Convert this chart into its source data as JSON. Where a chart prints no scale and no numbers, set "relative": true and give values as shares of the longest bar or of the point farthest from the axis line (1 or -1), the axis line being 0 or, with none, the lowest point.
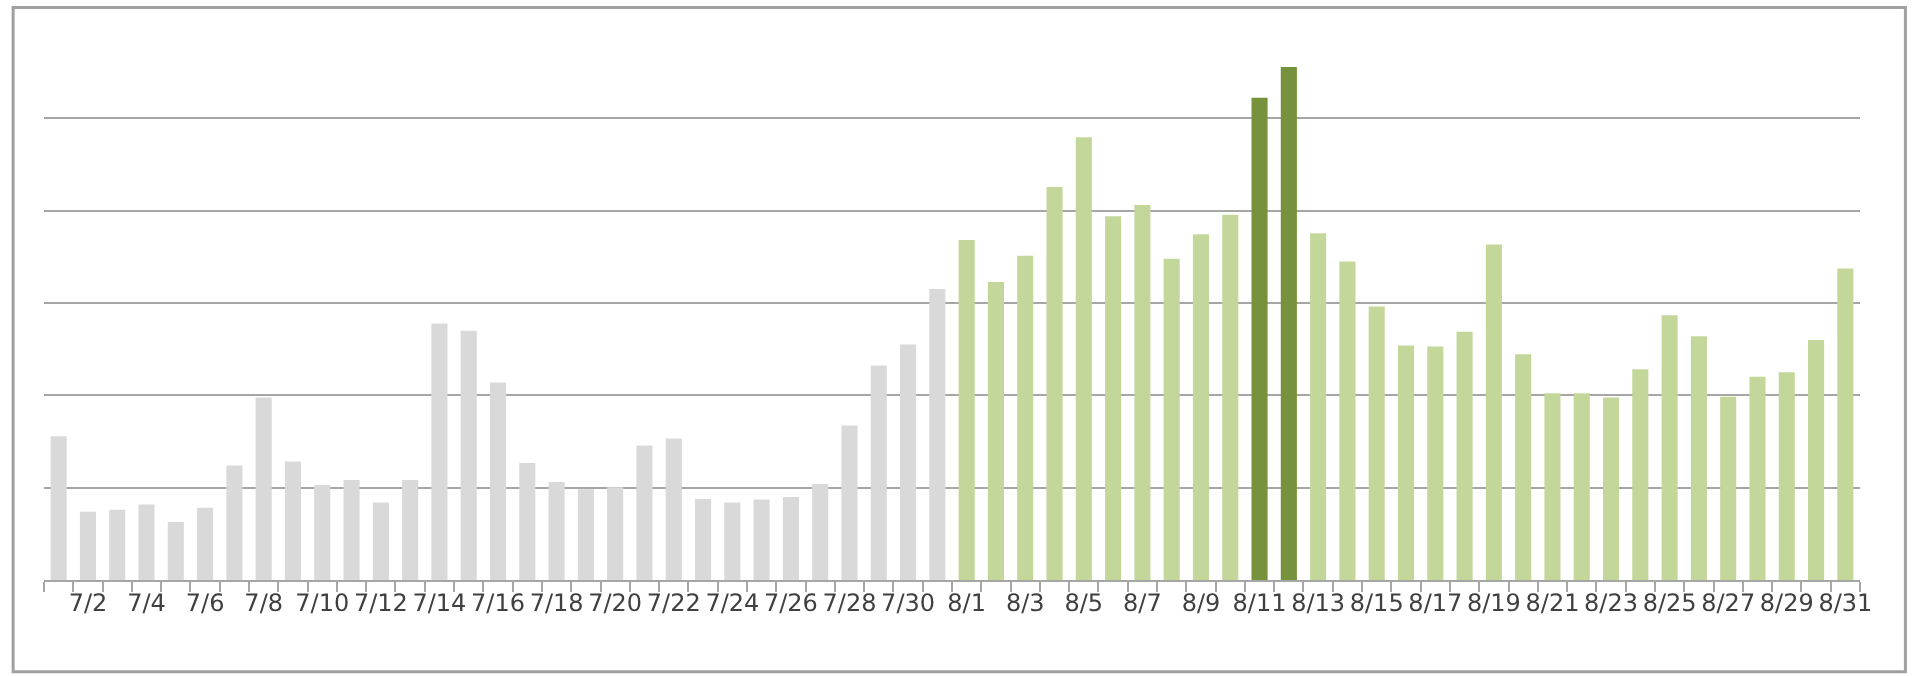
{
  "chart_data": {
    "type": "bar",
    "relative": true,
    "grid": "y",
    "legend": false,
    "categories": [
      null,
      "7/2",
      null,
      "7/4",
      null,
      "7/6",
      null,
      "7/8",
      null,
      "7/10",
      null,
      "7/12",
      null,
      "7/14",
      null,
      "7/16",
      null,
      "7/18",
      null,
      "7/20",
      null,
      "7/22",
      null,
      "7/24",
      null,
      "7/26",
      null,
      "7/28",
      null,
      "7/30",
      null,
      "8/1",
      null,
      "8/3",
      null,
      "8/5",
      null,
      "8/7",
      null,
      "8/9",
      null,
      "8/11",
      null,
      "8/13",
      null,
      "8/15",
      null,
      "8/17",
      null,
      "8/19",
      null,
      "8/21",
      null,
      "8/23",
      null,
      "8/25",
      null,
      "8/27",
      null,
      "8/29",
      null,
      "8/31"
    ],
    "values": [
      0.28,
      0.133,
      0.137,
      0.147,
      0.113,
      0.141,
      0.223,
      0.356,
      0.231,
      0.185,
      0.195,
      0.151,
      0.195,
      0.5,
      0.486,
      0.385,
      0.228,
      0.191,
      0.177,
      0.181,
      0.262,
      0.276,
      0.158,
      0.151,
      0.157,
      0.162,
      0.187,
      0.301,
      0.418,
      0.459,
      0.567,
      0.663,
      0.581,
      0.632,
      0.766,
      0.863,
      0.709,
      0.731,
      0.626,
      0.674,
      0.712,
      0.94,
      1,
      0.676,
      0.621,
      0.533,
      0.457,
      0.455,
      0.484,
      0.654,
      0.44,
      0.364,
      0.364,
      0.356,
      0.411,
      0.516,
      0.475,
      0.357,
      0.396,
      0.405,
      0.468,
      0.607
    ],
    "colors": [
      "#d9d9d9",
      "#d9d9d9",
      "#d9d9d9",
      "#d9d9d9",
      "#d9d9d9",
      "#d9d9d9",
      "#d9d9d9",
      "#d9d9d9",
      "#d9d9d9",
      "#d9d9d9",
      "#d9d9d9",
      "#d9d9d9",
      "#d9d9d9",
      "#d9d9d9",
      "#d9d9d9",
      "#d9d9d9",
      "#d9d9d9",
      "#d9d9d9",
      "#d9d9d9",
      "#d9d9d9",
      "#d9d9d9",
      "#d9d9d9",
      "#d9d9d9",
      "#d9d9d9",
      "#d9d9d9",
      "#d9d9d9",
      "#d9d9d9",
      "#d9d9d9",
      "#d9d9d9",
      "#d9d9d9",
      "#d9d9d9",
      "#c4d79b",
      "#c4d79b",
      "#c4d79b",
      "#c4d79b",
      "#c4d79b",
      "#c4d79b",
      "#c4d79b",
      "#c4d79b",
      "#c4d79b",
      "#c4d79b",
      "#76923c",
      "#76923c",
      "#c4d79b",
      "#c4d79b",
      "#c4d79b",
      "#c4d79b",
      "#c4d79b",
      "#c4d79b",
      "#c4d79b",
      "#c4d79b",
      "#c4d79b",
      "#c4d79b",
      "#c4d79b",
      "#c4d79b",
      "#c4d79b",
      "#c4d79b",
      "#c4d79b",
      "#c4d79b",
      "#c4d79b",
      "#c4d79b",
      "#c4d79b"
    ]
  }
}
